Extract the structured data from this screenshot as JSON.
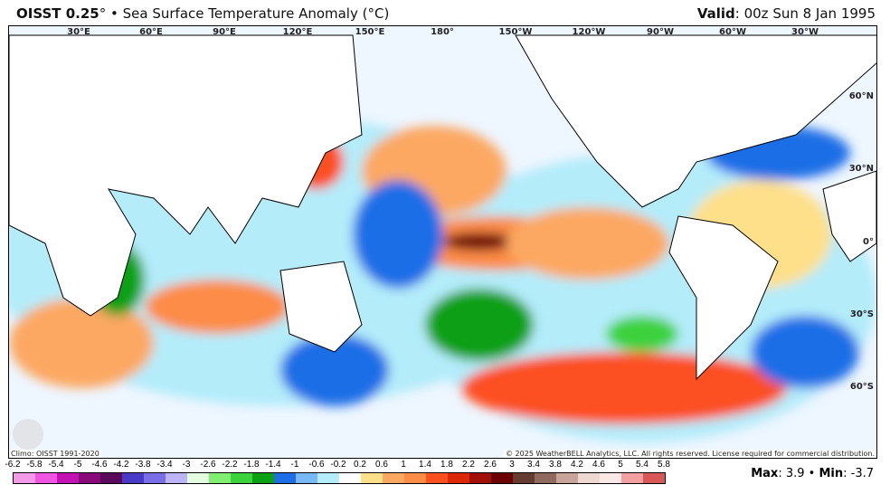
{
  "header": {
    "product": "OISST 0.25",
    "degree": "°",
    "separator": "•",
    "title": "Sea Surface Temperature Anomaly (°C)",
    "valid_label": "Valid",
    "valid_time": ": 00z Sun 8 Jan 1995"
  },
  "map": {
    "lon_labels": [
      "30°E",
      "60°E",
      "90°E",
      "120°E",
      "150°E",
      "180°",
      "150°W",
      "120°W",
      "90°W",
      "60°W",
      "30°W"
    ],
    "lat_labels": [
      "60°N",
      "30°N",
      "0°",
      "30°S",
      "60°S"
    ],
    "logo_text": "WeatherBELL",
    "climo": "Climo: OISST 1991-2020",
    "copyright": "© 2025 WeatherBELL Analytics, LLC. All rights reserved. License required for commercial distribution."
  },
  "colorbar": {
    "labels": [
      "-6.2",
      "-5.8",
      "-5.4",
      "-5",
      "-4.6",
      "-4.2",
      "-3.8",
      "-3.4",
      "-3",
      "-2.6",
      "-2.2",
      "-1.8",
      "-1.4",
      "-1",
      "-0.6",
      "-0.2",
      "0.2",
      "0.6",
      "1",
      "1.4",
      "1.8",
      "2.2",
      "2.6",
      "3",
      "3.4",
      "3.8",
      "4.2",
      "4.6",
      "5",
      "5.4",
      "5.8"
    ],
    "colors": [
      "#f59ae8",
      "#ef55e0",
      "#c212b4",
      "#880a78",
      "#5a0a5a",
      "#4a3ac8",
      "#7a6ee6",
      "#bcb4f6",
      "#e4fce0",
      "#80ee70",
      "#3cd23c",
      "#0ea014",
      "#1e6ee6",
      "#78b8f8",
      "#b4ecfa",
      "#ffffff",
      "#fee08a",
      "#fca862",
      "#fc8c46",
      "#fc5020",
      "#dc2806",
      "#a01006",
      "#6c0000",
      "#643c32",
      "#906a5e",
      "#c8a49a",
      "#ecd8d0",
      "#fde8e8",
      "#f4a0a0",
      "#d85858"
    ]
  },
  "stats": {
    "max_label": "Max",
    "max": ": 3.9",
    "sep": "•",
    "min_label": "Min",
    "min": ": -3.7"
  }
}
